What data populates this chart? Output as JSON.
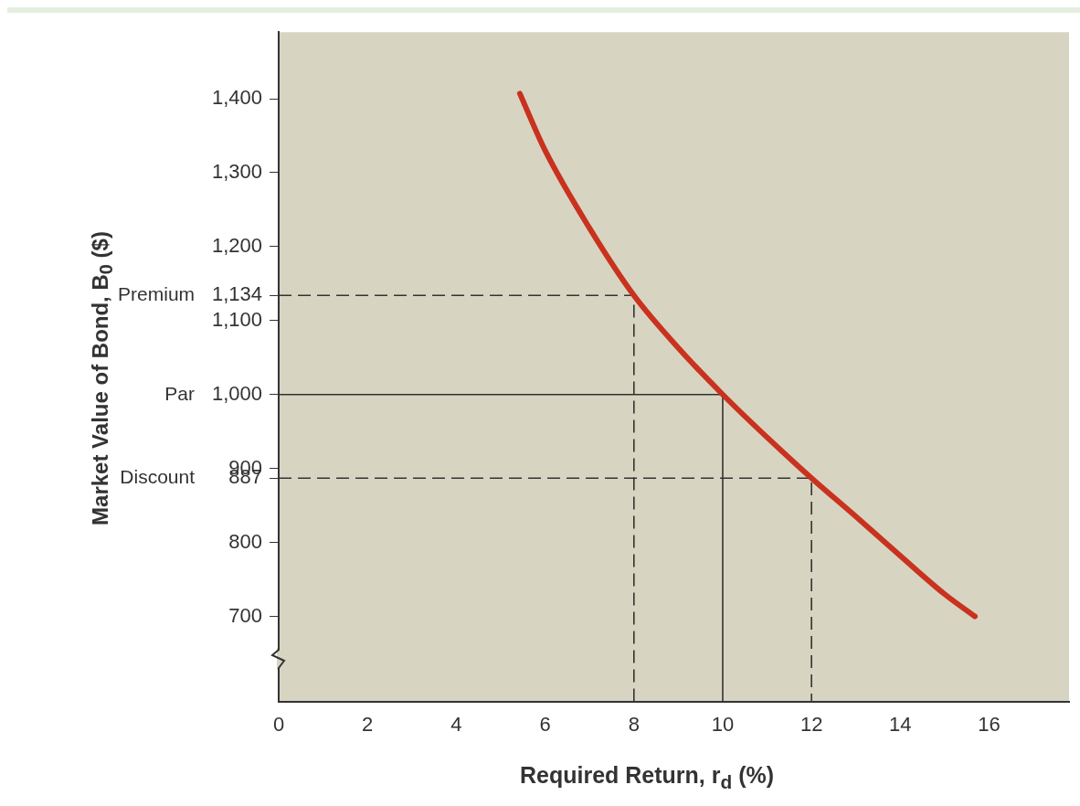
{
  "chart_data": {
    "type": "line",
    "xlabel": "Required Return, r$_{d}$ (%)",
    "ylabel": "Market Value of Bond, B$_{0}$ ($)",
    "xlim": [
      0,
      17.8
    ],
    "xticks": [
      0,
      2,
      4,
      6,
      8,
      10,
      12,
      14,
      16
    ],
    "ylim": [
      585,
      1490
    ],
    "yticks": [
      700,
      800,
      {
        "value": 887,
        "label": "887"
      },
      900,
      {
        "value": 1000,
        "label": "1,000"
      },
      {
        "value": 1100,
        "label": "1,100"
      },
      {
        "value": 1134,
        "label": "1,134"
      },
      {
        "value": 1200,
        "label": "1,200"
      },
      {
        "value": 1300,
        "label": "1,300"
      },
      {
        "value": 1400,
        "label": "1,400"
      }
    ],
    "grid": false,
    "legend": false,
    "marker": "none",
    "series": [
      {
        "color": "#c8321e",
        "line_style": "solid",
        "x": [
          5.43,
          6,
          7,
          8,
          9,
          10,
          11,
          12,
          13,
          14,
          15,
          15.68
        ],
        "values": [
          1407,
          1330,
          1225,
          1134,
          1063,
          1000,
          942,
          887,
          835,
          782,
          730,
          700
        ]
      },
      {
        "color": "#333333",
        "line_style": "dashed",
        "x": [
          0,
          8,
          8
        ],
        "values": [
          1134,
          1134,
          585
        ]
      },
      {
        "color": "#333333",
        "line_style": "solid",
        "x": [
          0,
          10,
          10
        ],
        "values": [
          1000,
          1000,
          585
        ]
      },
      {
        "color": "#333333",
        "line_style": "dashed",
        "x": [
          0,
          12,
          12
        ],
        "values": [
          887,
          887,
          585
        ]
      }
    ],
    "annotations": [
      "Premium",
      "Par",
      "Discount"
    ]
  }
}
